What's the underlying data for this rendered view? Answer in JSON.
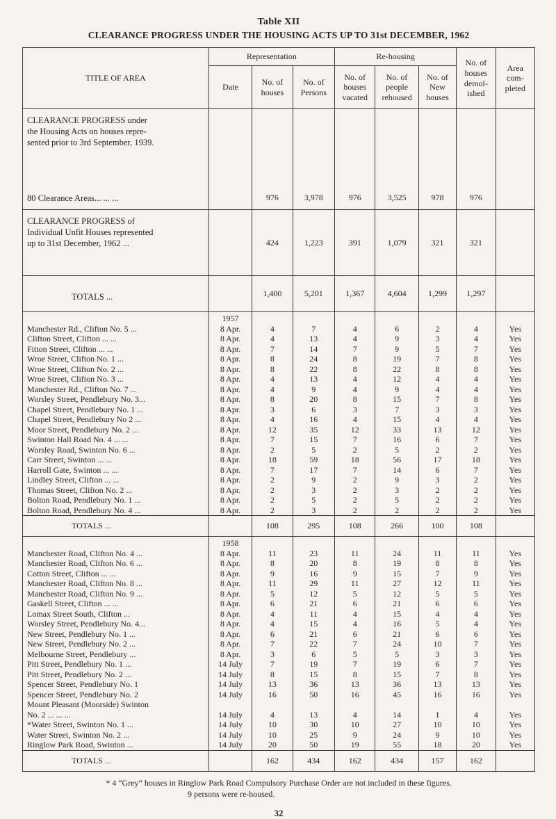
{
  "page": {
    "table_label": "Table XII",
    "title": "CLEARANCE PROGRESS UNDER THE HOUSING ACTS UP TO 31st DECEMBER, 1962",
    "footnote": "* 4 “Grey” houses in Ringlow Park Road Compulsory Purchase Order are not included in these figures.",
    "footnote2": "9 persons were re-housed.",
    "page_number": "32"
  },
  "table": {
    "headers": {
      "title_of_area": "TITLE OF AREA",
      "representation": "Representation",
      "rehousing": "Re-housing",
      "date": "Date",
      "rep_houses": "No. of\nhouses",
      "rep_persons": "No. of\nPersons",
      "houses_vacated": "No. of\nhouses\nvacated",
      "people_rehoused": "No. of\npeople\nrehoused",
      "new_houses": "No. of\nNew\nhouses",
      "demolished": "No. of\nhouses\ndemol-\nished",
      "completed": "Area\ncom-\npleted"
    },
    "summary_rows": [
      {
        "label": "CLEARANCE PROGRESS under\nthe Housing Acts on houses repre-\nsented prior to 3rd September, 1939.\n\n\n\n\n80 Clearance Areas...      ...      ...",
        "values": [
          "976",
          "3,978",
          "976",
          "3,525",
          "978",
          "976"
        ],
        "completed": ""
      },
      {
        "label": "CLEARANCE PROGRESS of\nIndividual Unfit Houses represented\nup to 31st December, 1962      ...",
        "values": [
          "424",
          "1,223",
          "391",
          "1,079",
          "321",
          "321"
        ],
        "completed": ""
      },
      {
        "label": "TOTALS ...",
        "values": [
          "1,400",
          "5,201",
          "1,367",
          "4,604",
          "1,299",
          "1,297"
        ],
        "completed": ""
      }
    ],
    "sections": [
      {
        "year": "1957",
        "rows": [
          [
            "Manchester Rd., Clifton No. 5 ...",
            "8 Apr.",
            "4",
            "7",
            "4",
            "6",
            "2",
            "4",
            "Yes"
          ],
          [
            "Clifton Street, Clifton ... ...",
            "8 Apr.",
            "4",
            "13",
            "4",
            "9",
            "3",
            "4",
            "Yes"
          ],
          [
            "Fitton Street, Clifton ... ...",
            "8 Apr.",
            "7",
            "14",
            "7",
            "9",
            "5",
            "7",
            "Yes"
          ],
          [
            "Wroe Street, Clifton No. 1 ...",
            "8 Apr.",
            "8",
            "24",
            "8",
            "19",
            "7",
            "8",
            "Yes"
          ],
          [
            "Wroe Street, Clifton No. 2 ...",
            "8 Apr.",
            "8",
            "22",
            "8",
            "22",
            "8",
            "8",
            "Yes"
          ],
          [
            "Wroe Street, Clifton No. 3 ...",
            "8 Apr.",
            "4",
            "13",
            "4",
            "12",
            "4",
            "4",
            "Yes"
          ],
          [
            "Manchester Rd., Clifton No. 7 ...",
            "8 Apr.",
            "4",
            "9",
            "4",
            "9",
            "4",
            "4",
            "Yes"
          ],
          [
            "Worsley Street, Pendlebury No. 3...",
            "8 Apr.",
            "8",
            "20",
            "8",
            "15",
            "7",
            "8",
            "Yes"
          ],
          [
            "Chapel Street, Pendlebury No. 1 ...",
            "8 Apr.",
            "3",
            "6",
            "3",
            "7",
            "3",
            "3",
            "Yes"
          ],
          [
            "Chapel Street, Pendlebury No 2 ...",
            "8 Apr.",
            "4",
            "16",
            "4",
            "15",
            "4",
            "4",
            "Yes"
          ],
          [
            "Moor Street, Pendlebury No. 2 ...",
            "8 Apr.",
            "12",
            "35",
            "12",
            "33",
            "13",
            "12",
            "Yes"
          ],
          [
            "Swinton Hall Road No. 4 ... ...",
            "8 Apr.",
            "7",
            "15",
            "7",
            "16",
            "6",
            "7",
            "Yes"
          ],
          [
            "Worsley Road, Swinton No. 6 ...",
            "8 Apr.",
            "2",
            "5",
            "2",
            "5",
            "2",
            "2",
            "Yes"
          ],
          [
            "Carr Street, Swinton ... ...",
            "8 Apr.",
            "18",
            "59",
            "18",
            "56",
            "17",
            "18",
            "Yes"
          ],
          [
            "Harroll Gate, Swinton ... ...",
            "8 Apr.",
            "7",
            "17",
            "7",
            "14",
            "6",
            "7",
            "Yes"
          ],
          [
            "Lindley Street, Clifton ... ...",
            "8 Apr.",
            "2",
            "9",
            "2",
            "9",
            "3",
            "2",
            "Yes"
          ],
          [
            "Thomas Street, Clifton No. 2 ...",
            "8 Apr.",
            "2",
            "3",
            "2",
            "3",
            "2",
            "2",
            "Yes"
          ],
          [
            "Bolton Road, Pendlebury No. 1 ...",
            "8 Apr.",
            "2",
            "5",
            "2",
            "5",
            "2",
            "2",
            "Yes"
          ],
          [
            "Bolton Road, Pendlebury No. 4 ...",
            "8 Apr.",
            "2",
            "3",
            "2",
            "2",
            "2",
            "2",
            "Yes"
          ]
        ],
        "totals_label": "TOTALS ...",
        "totals": [
          "108",
          "295",
          "108",
          "266",
          "100",
          "108"
        ],
        "totals_completed": ""
      },
      {
        "year": "1958",
        "rows": [
          [
            "Manchester Road, Clifton No. 4 ...",
            "8 Apr.",
            "11",
            "23",
            "11",
            "24",
            "11",
            "11",
            "Yes"
          ],
          [
            "Manchester Road, Clifton No. 6 ...",
            "8 Apr.",
            "8",
            "20",
            "8",
            "19",
            "8",
            "8",
            "Yes"
          ],
          [
            "Cotton Street, Clifton ... ...",
            "8 Apr.",
            "9",
            "16",
            "9",
            "15",
            "7",
            "9",
            "Yes"
          ],
          [
            "Manchester Road, Clifton No. 8 ...",
            "8 Apr.",
            "11",
            "29",
            "11",
            "27",
            "12",
            "11",
            "Yes"
          ],
          [
            "Manchester Road, Clifton No. 9 ...",
            "8 Apr.",
            "5",
            "12",
            "5",
            "12",
            "5",
            "5",
            "Yes"
          ],
          [
            "Gaskell Street, Clifton ... ...",
            "8 Apr.",
            "6",
            "21",
            "6",
            "21",
            "6",
            "6",
            "Yes"
          ],
          [
            "Lomax Street South, Clifton ...",
            "8 Apr.",
            "4",
            "11",
            "4",
            "15",
            "4",
            "4",
            "Yes"
          ],
          [
            "Worsley Street, Pendlebury No. 4...",
            "8 Apr.",
            "4",
            "15",
            "4",
            "16",
            "5",
            "4",
            "Yes"
          ],
          [
            "New Street, Pendlebury No. 1 ...",
            "8 Apr.",
            "6",
            "21",
            "6",
            "21",
            "6",
            "6",
            "Yes"
          ],
          [
            "New Street, Pendlebury No. 2 ...",
            "8 Apr.",
            "7",
            "22",
            "7",
            "24",
            "10",
            "7",
            "Yes"
          ],
          [
            "Melbourne Street, Pendlebury ...",
            "8 Apr.",
            "3",
            "6",
            "5",
            "5",
            "3",
            "3",
            "Yes"
          ],
          [
            "Pitt Street, Pendlebury No. 1 ...",
            "14 July",
            "7",
            "19",
            "7",
            "19",
            "6",
            "7",
            "Yes"
          ],
          [
            "Pitt Street, Pendlebury No. 2 ...",
            "14 July",
            "8",
            "15",
            "8",
            "15",
            "7",
            "8",
            "Yes"
          ],
          [
            "Spencer Street, Pendlebury No. 1",
            "14 July",
            "13",
            "36",
            "13",
            "36",
            "13",
            "13",
            "Yes"
          ],
          [
            "Spencer Street, Pendlebury No. 2",
            "14 July",
            "16",
            "50",
            "16",
            "45",
            "16",
            "16",
            "Yes"
          ],
          [
            "Mount Pleasant (Moorside) Swinton\nNo. 2  ...     ...     ...",
            "14 July",
            "4",
            "13",
            "4",
            "14",
            "1",
            "4",
            "Yes"
          ],
          [
            "*Water Street, Swinton No. 1 ...",
            "14 July",
            "10",
            "30",
            "10",
            "27",
            "10",
            "10",
            "Yes"
          ],
          [
            "Water Street, Swinton No. 2 ...",
            "14 July",
            "10",
            "25",
            "9",
            "24",
            "9",
            "10",
            "Yes"
          ],
          [
            "Ringlow Park Road, Swinton ...",
            "14 July",
            "20",
            "50",
            "19",
            "55",
            "18",
            "20",
            "Yes"
          ]
        ],
        "totals_label": "TOTALS ...",
        "totals": [
          "162",
          "434",
          "162",
          "434",
          "157",
          "162"
        ],
        "totals_completed": ""
      }
    ]
  }
}
